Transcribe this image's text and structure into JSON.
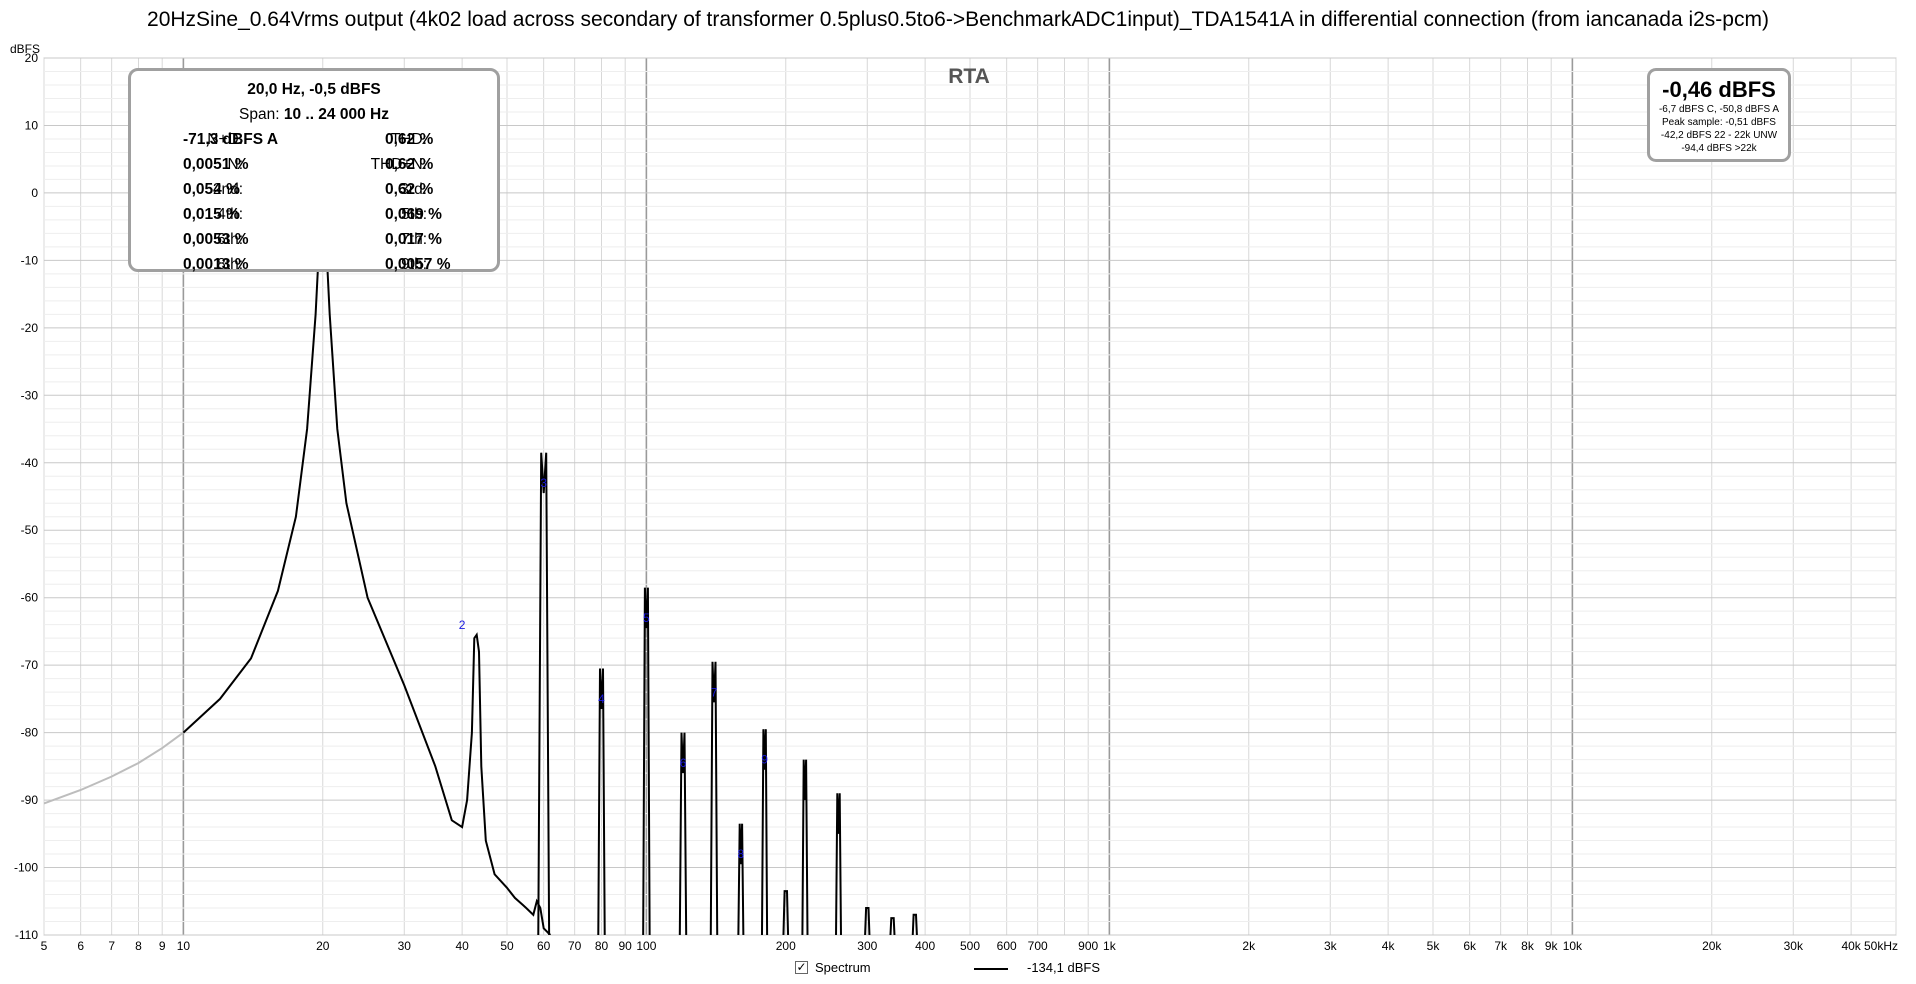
{
  "title": "20HzSine_0.64Vrms output (4k02 load across secondary of transformer 0.5plus0.5to6->BenchmarkADC1input)_TDA1541A in differential connection (from iancanada i2s-pcm)",
  "chart_data": {
    "type": "line",
    "title": "RTA",
    "ylabel": "dBFS",
    "xscale": "log",
    "xlim": [
      5,
      50000
    ],
    "ylim": [
      -110,
      20
    ],
    "grid": true,
    "y_ticks": [
      20,
      10,
      0,
      -10,
      -20,
      -30,
      -40,
      -50,
      -60,
      -70,
      -80,
      -90,
      -100,
      -110
    ],
    "x_ticks": [
      {
        "v": 5,
        "label": "5"
      },
      {
        "v": 6,
        "label": "6"
      },
      {
        "v": 7,
        "label": "7"
      },
      {
        "v": 8,
        "label": "8"
      },
      {
        "v": 9,
        "label": "9"
      },
      {
        "v": 10,
        "label": "10"
      },
      {
        "v": 20,
        "label": "20"
      },
      {
        "v": 30,
        "label": "30"
      },
      {
        "v": 40,
        "label": "40"
      },
      {
        "v": 50,
        "label": "50"
      },
      {
        "v": 60,
        "label": "60"
      },
      {
        "v": 70,
        "label": "70"
      },
      {
        "v": 80,
        "label": "80"
      },
      {
        "v": 90,
        "label": "90"
      },
      {
        "v": 100,
        "label": "100"
      },
      {
        "v": 200,
        "label": "200"
      },
      {
        "v": 300,
        "label": "300"
      },
      {
        "v": 400,
        "label": "400"
      },
      {
        "v": 500,
        "label": "500"
      },
      {
        "v": 600,
        "label": "600"
      },
      {
        "v": 700,
        "label": "700"
      },
      {
        "v": 900,
        "label": "900"
      },
      {
        "v": 1000,
        "label": "1k"
      },
      {
        "v": 2000,
        "label": "2k"
      },
      {
        "v": 3000,
        "label": "3k"
      },
      {
        "v": 4000,
        "label": "4k"
      },
      {
        "v": 5000,
        "label": "5k"
      },
      {
        "v": 6000,
        "label": "6k"
      },
      {
        "v": 7000,
        "label": "7k"
      },
      {
        "v": 8000,
        "label": "8k"
      },
      {
        "v": 9000,
        "label": "9k"
      },
      {
        "v": 10000,
        "label": "10k"
      },
      {
        "v": 20000,
        "label": "20k"
      },
      {
        "v": 30000,
        "label": "30k"
      },
      {
        "v": 40000,
        "label": "40k"
      },
      {
        "v": 50000,
        "label": "50kHz"
      }
    ],
    "harmonics": [
      {
        "n": "1",
        "f": 20,
        "db": -0.5
      },
      {
        "n": "2",
        "f": 40,
        "db": -65.5
      },
      {
        "n": "3",
        "f": 60,
        "db": -44.5
      },
      {
        "n": "4",
        "f": 80,
        "db": -76.5
      },
      {
        "n": "5",
        "f": 100,
        "db": -64.5
      },
      {
        "n": "6",
        "f": 120,
        "db": -86
      },
      {
        "n": "7",
        "f": 140,
        "db": -75.5
      },
      {
        "n": "8",
        "f": 160,
        "db": -99.5
      },
      {
        "n": "9",
        "f": 180,
        "db": -85.5
      }
    ],
    "extra_peaks": [
      {
        "f": 200,
        "db": -103.5
      },
      {
        "f": 220,
        "db": -90
      },
      {
        "f": 260,
        "db": -95
      },
      {
        "f": 300,
        "db": -106
      },
      {
        "f": 340,
        "db": -107.5
      },
      {
        "f": 380,
        "db": -107
      }
    ],
    "series": [
      {
        "name": "Spectrum",
        "color": "#000000",
        "points_grey": [
          [
            5,
            -90.5
          ],
          [
            6,
            -88.5
          ],
          [
            7,
            -86.5
          ],
          [
            8,
            -84.5
          ],
          [
            9,
            -82.3
          ],
          [
            10,
            -80
          ]
        ],
        "points": [
          [
            10,
            -80
          ],
          [
            12,
            -75
          ],
          [
            14,
            -69
          ],
          [
            16,
            -59
          ],
          [
            17.5,
            -48
          ],
          [
            18.5,
            -35
          ],
          [
            19.3,
            -18
          ],
          [
            19.7,
            -6
          ],
          [
            20,
            -0.5
          ],
          [
            20.3,
            -6
          ],
          [
            20.7,
            -18
          ],
          [
            21.5,
            -35
          ],
          [
            22.5,
            -46
          ],
          [
            25,
            -60
          ],
          [
            30,
            -73
          ],
          [
            35,
            -85
          ],
          [
            38,
            -93
          ],
          [
            40,
            -94
          ],
          [
            41,
            -90
          ],
          [
            42,
            -80
          ],
          [
            42.5,
            -66
          ],
          [
            43,
            -65.5
          ],
          [
            43.5,
            -68
          ],
          [
            44,
            -85
          ],
          [
            45,
            -96
          ],
          [
            47,
            -101
          ],
          [
            50,
            -103
          ],
          [
            52,
            -104.5
          ],
          [
            54,
            -105.5
          ],
          [
            55,
            -106
          ],
          [
            57,
            -107
          ],
          [
            58,
            -105
          ],
          [
            59,
            -106
          ],
          [
            60,
            -109
          ],
          [
            62,
            -110
          ]
        ],
        "peaks_drawn": [
          [
            60,
            -44.5,
            2.5
          ],
          [
            80,
            -76.5,
            1.5
          ],
          [
            100,
            -64.5,
            1.5
          ],
          [
            120,
            -86,
            1.5
          ],
          [
            140,
            -75.5,
            1.5
          ],
          [
            160,
            -99.5,
            1.2
          ],
          [
            180,
            -85.5,
            1.2
          ],
          [
            200,
            -103.5,
            1.2
          ],
          [
            220,
            -90,
            1.2
          ],
          [
            260,
            -95,
            1.2
          ],
          [
            300,
            -106,
            1.2
          ],
          [
            340,
            -107.5,
            1.2
          ],
          [
            380,
            -107,
            1.2
          ]
        ]
      }
    ]
  },
  "stats": {
    "header": "20,0 Hz, -0,5 dBFS",
    "span_label": "Span:",
    "span_value": "10 .. 24 000 Hz",
    "rows": [
      {
        "l": "N+D:",
        "lv": "-71,3 dBFS A",
        "r": "THD:",
        "rv": "0,62 %"
      },
      {
        "l": "N:",
        "lv": "0,0051 %",
        "r": "THD+N:",
        "rv": "0,62 %"
      },
      {
        "l": "2nd:",
        "lv": "0,054 %",
        "r": "3rd:",
        "rv": "0,62 %"
      },
      {
        "l": "4th:",
        "lv": "0,015 %",
        "r": "5th:",
        "rv": "0,069 %"
      },
      {
        "l": "6th:",
        "lv": "0,0053 %",
        "r": "7th:",
        "rv": "0,017 %"
      },
      {
        "l": "8th:",
        "lv": "0,0013 %",
        "r": "9th:",
        "rv": "0,0057 %"
      }
    ]
  },
  "level": {
    "main": "-0,46 dBFS",
    "line1": "-6,7 dBFS C, -50,8 dBFS A",
    "line2": "Peak sample: -0,51 dBFS",
    "line3": "-42,2 dBFS 22 - 22k UNW",
    "line4": "-94,4 dBFS >22k"
  },
  "legend": {
    "checkbox": "✓",
    "spectrum_label": "Spectrum",
    "value": "-134,1 dBFS"
  }
}
